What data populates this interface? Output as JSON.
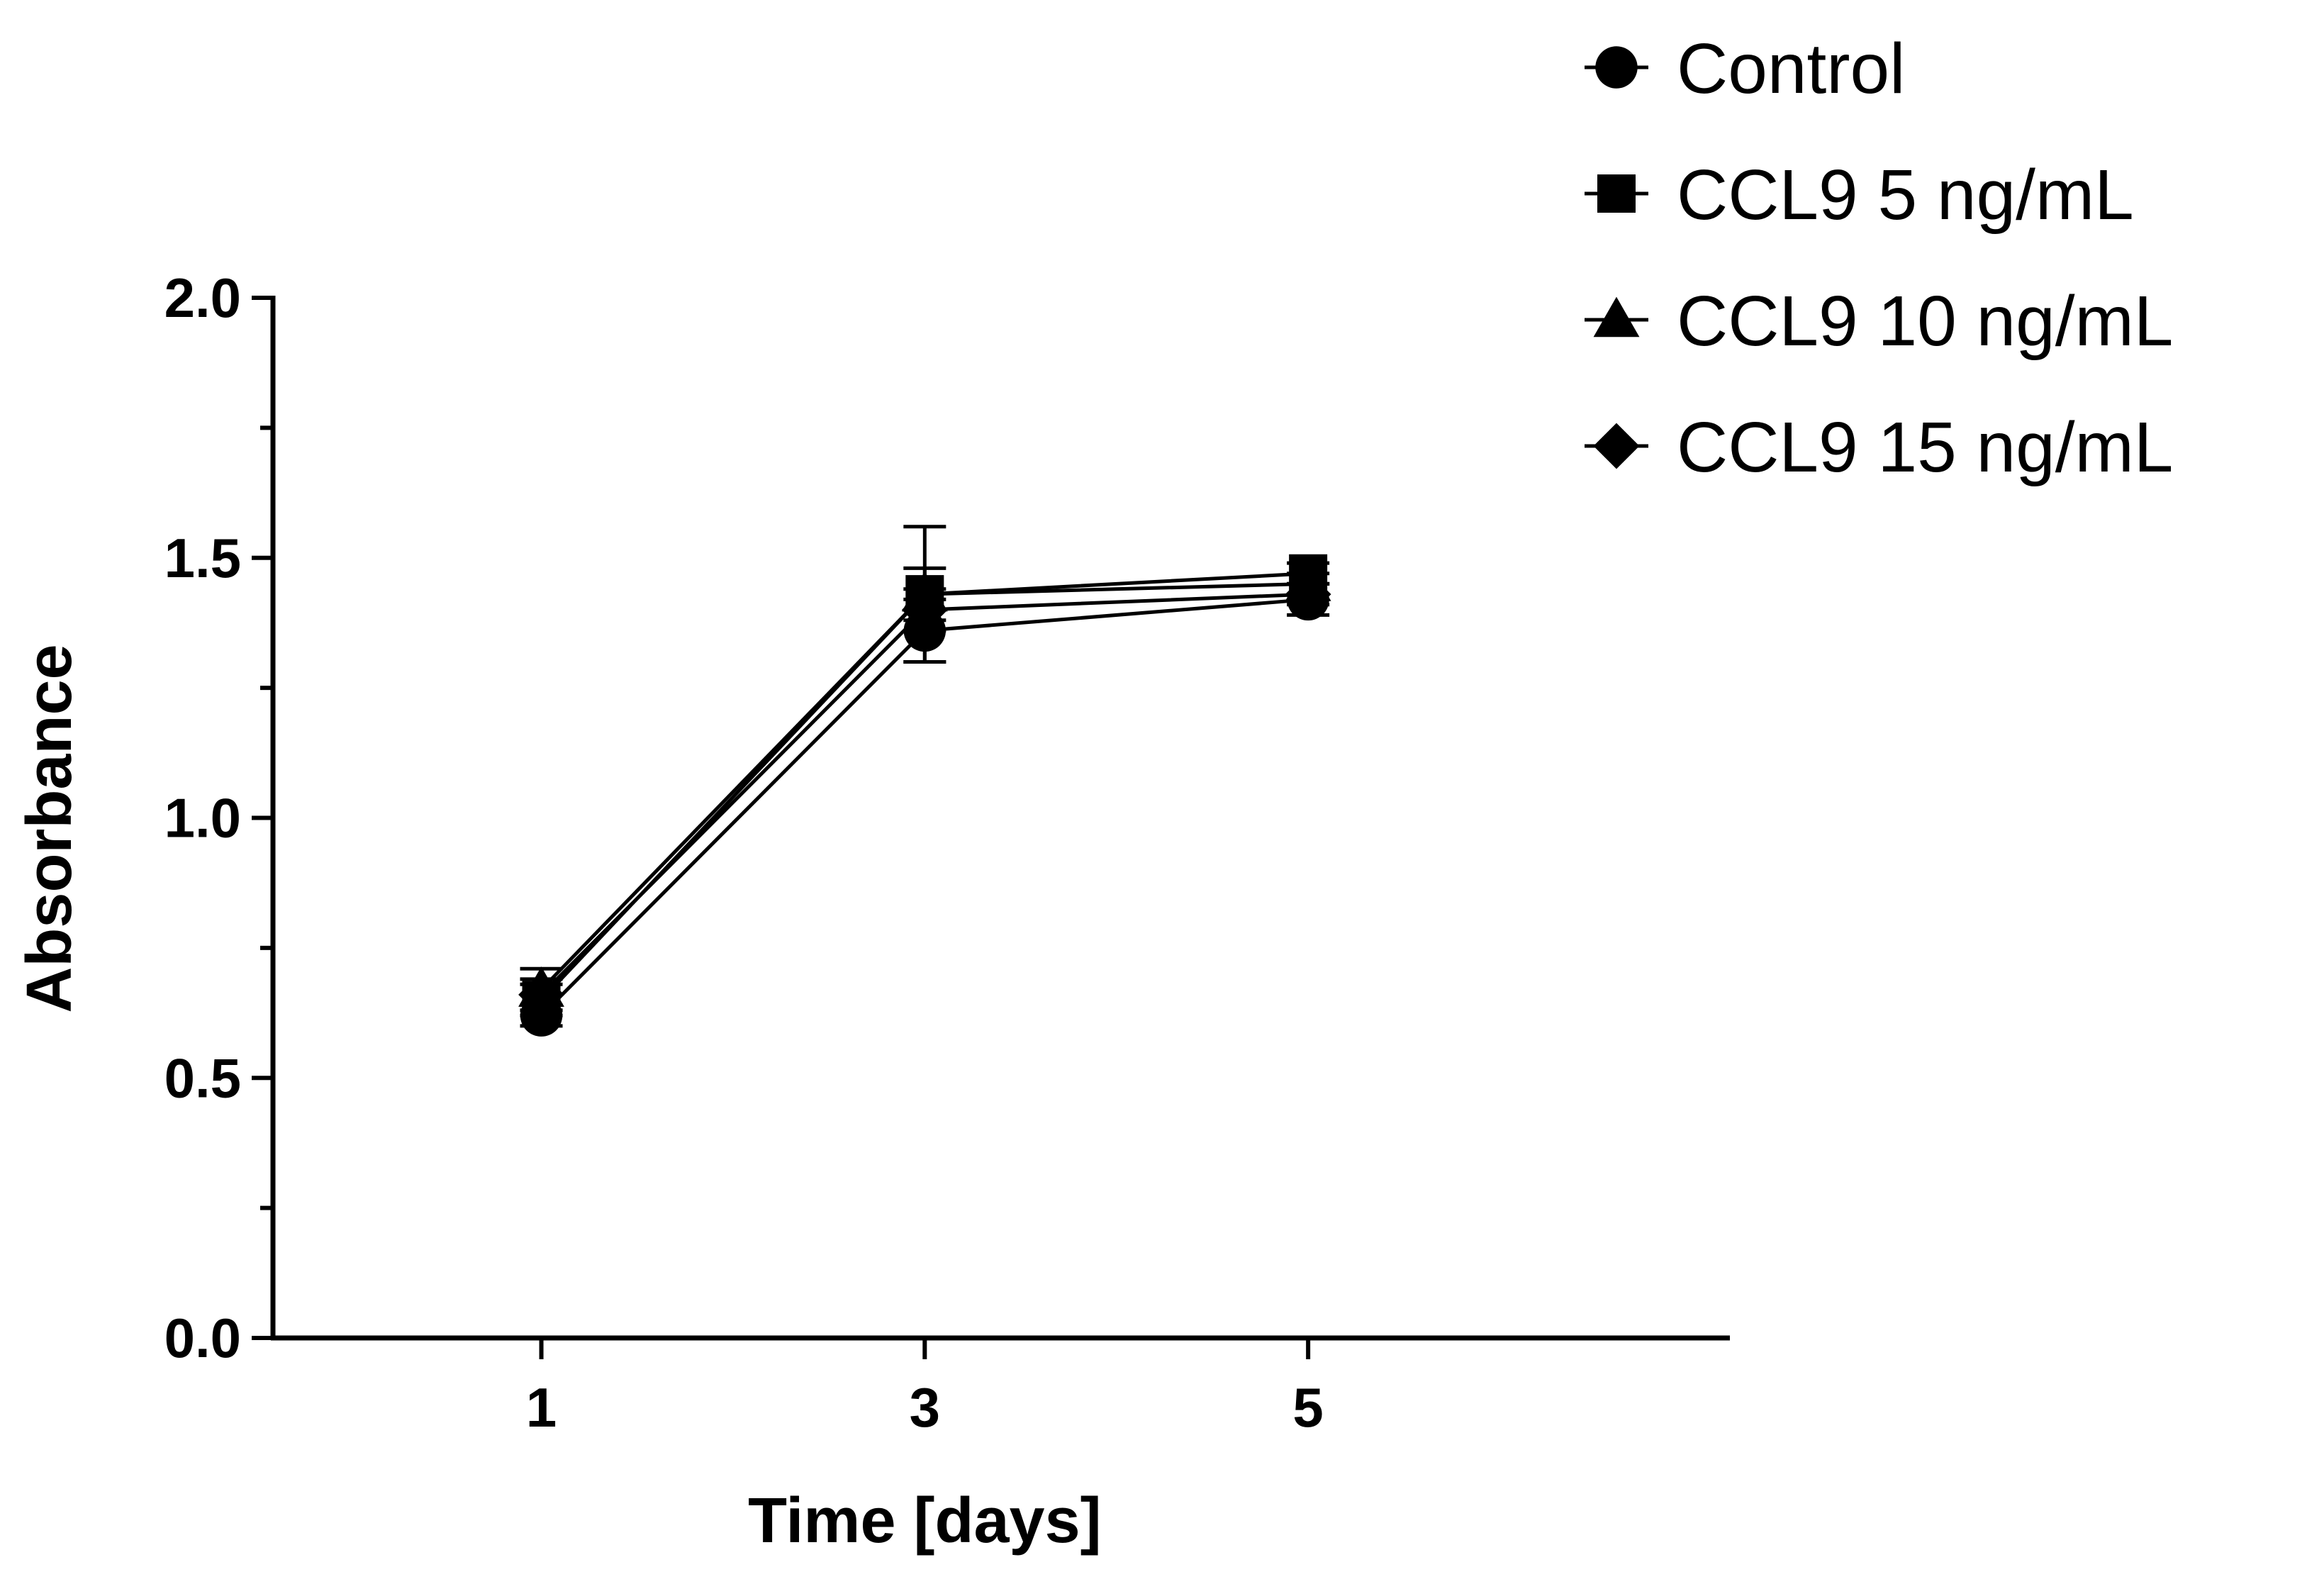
{
  "chart_data": {
    "type": "line",
    "title": "",
    "xlabel": "Time [days]",
    "ylabel": "Absorbance",
    "x": [
      1,
      3,
      5
    ],
    "x_tick_labels": [
      "1",
      "3",
      "5"
    ],
    "xlim": [
      -0.4,
      7.2
    ],
    "ylim": [
      0,
      2.0
    ],
    "y_major_ticks": [
      0.0,
      0.5,
      1.0,
      1.5,
      2.0
    ],
    "y_tick_labels": [
      "0.0",
      "0.5",
      "1.0",
      "1.5",
      "2.0"
    ],
    "y_minor_step": 0.25,
    "grid": false,
    "legend_position": "top-right",
    "series": [
      {
        "name": "Control",
        "marker": "circle",
        "values": [
          0.62,
          1.36,
          1.42
        ],
        "errors": [
          0.02,
          0.06,
          0.03
        ]
      },
      {
        "name": "CCL9 5 ng/mL",
        "marker": "square",
        "values": [
          0.65,
          1.43,
          1.47
        ],
        "errors": [
          0.03,
          0.05,
          0.02
        ]
      },
      {
        "name": "CCL9 10 ng/mL",
        "marker": "triangle",
        "values": [
          0.67,
          1.43,
          1.45
        ],
        "errors": [
          0.04,
          0.13,
          0.02
        ]
      },
      {
        "name": "CCL9 15 ng/mL",
        "marker": "diamond",
        "values": [
          0.66,
          1.4,
          1.43
        ],
        "errors": [
          0.03,
          0.04,
          0.02
        ]
      }
    ]
  }
}
